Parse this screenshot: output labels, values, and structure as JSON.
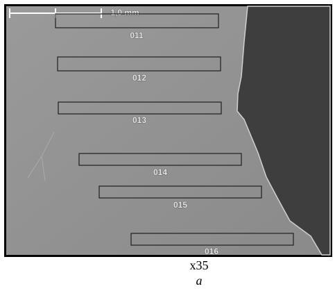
{
  "scale_bar": {
    "label": "1,0 mm"
  },
  "regions": [
    {
      "label": "011"
    },
    {
      "label": "012"
    },
    {
      "label": "013"
    },
    {
      "label": "014"
    },
    {
      "label": "015"
    },
    {
      "label": "016"
    }
  ],
  "caption": "x35",
  "panel_label": "a"
}
